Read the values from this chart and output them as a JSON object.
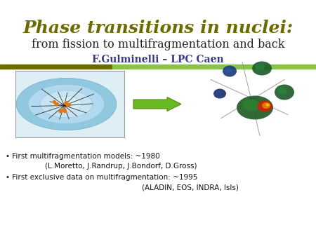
{
  "title": "Phase transitions in nuclei:",
  "title_color": "#6b6b00",
  "subtitle": "from fission to multifragmentation and back",
  "subtitle_color": "#222222",
  "author": "F.Gulminelli – LPC Caen",
  "author_color": "#3a3a8a",
  "sep_color_left": "#6b6b00",
  "sep_color_right": "#8bc34a",
  "bullet1_line1": "• First multifragmentation models: ~1980",
  "bullet1_line2": "(L.Moretto, J.Randrup, J.Bondorf, D.Gross)",
  "bullet2_line1": "• First exclusive data on multifragmentation: ~1995",
  "bullet2_line2": "(ALADIN, EOS, INDRA, IsIs)",
  "bullet_color": "#111111",
  "bg_color": "#ffffff"
}
